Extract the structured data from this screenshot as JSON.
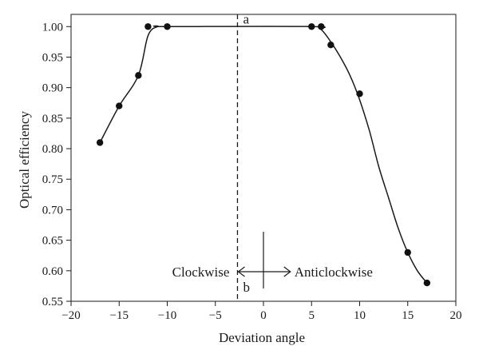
{
  "chart_data": {
    "type": "scatter",
    "title": "",
    "xlabel": "Deviation angle",
    "ylabel": "Optical efficiency",
    "xlim": [
      -20,
      20
    ],
    "ylim": [
      0.55,
      1.02
    ],
    "xticks": [
      -20,
      -15,
      -10,
      -5,
      0,
      5,
      10,
      15,
      20
    ],
    "yticks": [
      0.55,
      0.6,
      0.65,
      0.7,
      0.75,
      0.8,
      0.85,
      0.9,
      0.95,
      1.0
    ],
    "x_tick_labels": [
      "−20",
      "−15",
      "−10",
      "−5",
      "0",
      "5",
      "10",
      "15",
      "20"
    ],
    "y_tick_labels": [
      "0.55",
      "0.60",
      "0.65",
      "0.70",
      "0.75",
      "0.80",
      "0.85",
      "0.90",
      "0.95",
      "1.00"
    ],
    "grid": false,
    "series": [
      {
        "points": [
          {
            "x": -17,
            "y": 0.81
          },
          {
            "x": -15,
            "y": 0.87
          },
          {
            "x": -13,
            "y": 0.92
          },
          {
            "x": -12,
            "y": 1.0
          },
          {
            "x": -10,
            "y": 1.0
          },
          {
            "x": 5,
            "y": 1.0
          },
          {
            "x": 6,
            "y": 1.0
          },
          {
            "x": 7,
            "y": 0.97
          },
          {
            "x": 10,
            "y": 0.89
          },
          {
            "x": 15,
            "y": 0.63
          },
          {
            "x": 17,
            "y": 0.58
          }
        ]
      }
    ],
    "curve": [
      {
        "x": -17,
        "y": 0.81
      },
      {
        "x": -15,
        "y": 0.87
      },
      {
        "x": -13,
        "y": 0.92
      },
      {
        "x": -12,
        "y": 0.985
      },
      {
        "x": -11,
        "y": 1.0
      },
      {
        "x": -10,
        "y": 1.0
      },
      {
        "x": 5,
        "y": 1.0
      },
      {
        "x": 6,
        "y": 0.995
      },
      {
        "x": 7,
        "y": 0.975
      },
      {
        "x": 8,
        "y": 0.95
      },
      {
        "x": 9,
        "y": 0.92
      },
      {
        "x": 10,
        "y": 0.88
      },
      {
        "x": 11,
        "y": 0.83
      },
      {
        "x": 12,
        "y": 0.77
      },
      {
        "x": 13,
        "y": 0.72
      },
      {
        "x": 14,
        "y": 0.67
      },
      {
        "x": 15,
        "y": 0.63
      },
      {
        "x": 16,
        "y": 0.6
      },
      {
        "x": 17,
        "y": 0.58
      }
    ],
    "reference_line": {
      "x": -2.7,
      "style": "dashed"
    },
    "annotations": {
      "top_label": "a",
      "bottom_label": "b",
      "left_direction": "Clockwise",
      "right_direction": "Anticlockwise"
    }
  }
}
